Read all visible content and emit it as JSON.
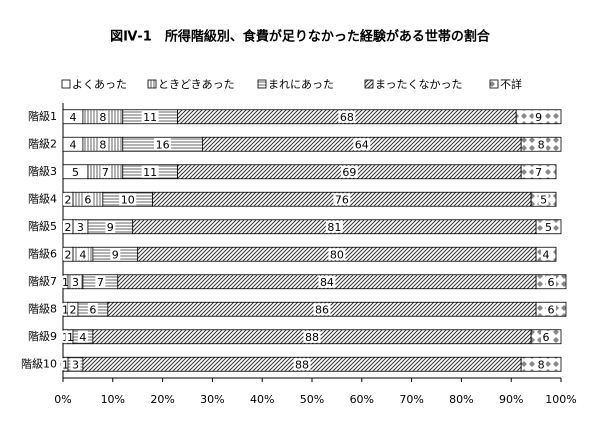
{
  "chart_data": {
    "type": "stacked-bar-horizontal",
    "title": "図Ⅳ-1　所得階級別、食費が足りなかった経験がある世帯の割合",
    "categories": [
      "階級1",
      "階級2",
      "階級3",
      "階級4",
      "階級5",
      "階級6",
      "階級7",
      "階級8",
      "階級9",
      "階級10"
    ],
    "series": [
      {
        "name": "よくあった",
        "values": [
          4,
          4,
          5,
          2,
          2,
          2,
          1,
          1,
          1,
          0
        ]
      },
      {
        "name": "ときどきあった",
        "values": [
          8,
          8,
          7,
          6,
          3,
          4,
          3,
          2,
          1,
          1
        ]
      },
      {
        "name": "まれにあった",
        "values": [
          11,
          16,
          11,
          10,
          9,
          9,
          7,
          6,
          4,
          3
        ]
      },
      {
        "name": "まったくなかった",
        "values": [
          68,
          64,
          69,
          76,
          81,
          80,
          84,
          86,
          88,
          88
        ]
      },
      {
        "name": "不詳",
        "values": [
          9,
          8,
          7,
          5,
          5,
          4,
          6,
          6,
          6,
          8
        ]
      }
    ],
    "xlim": [
      0,
      100
    ],
    "xticks": [
      {
        "value": 0,
        "label": "0%"
      },
      {
        "value": 10,
        "label": "10%"
      },
      {
        "value": 20,
        "label": "20%"
      },
      {
        "value": 30,
        "label": "30%"
      },
      {
        "value": 40,
        "label": "40%"
      },
      {
        "value": 50,
        "label": "50%"
      },
      {
        "value": 60,
        "label": "60%"
      },
      {
        "value": 70,
        "label": "70%"
      },
      {
        "value": 80,
        "label": "80%"
      },
      {
        "value": 90,
        "label": "90%"
      },
      {
        "value": 100,
        "label": "100%"
      }
    ]
  }
}
